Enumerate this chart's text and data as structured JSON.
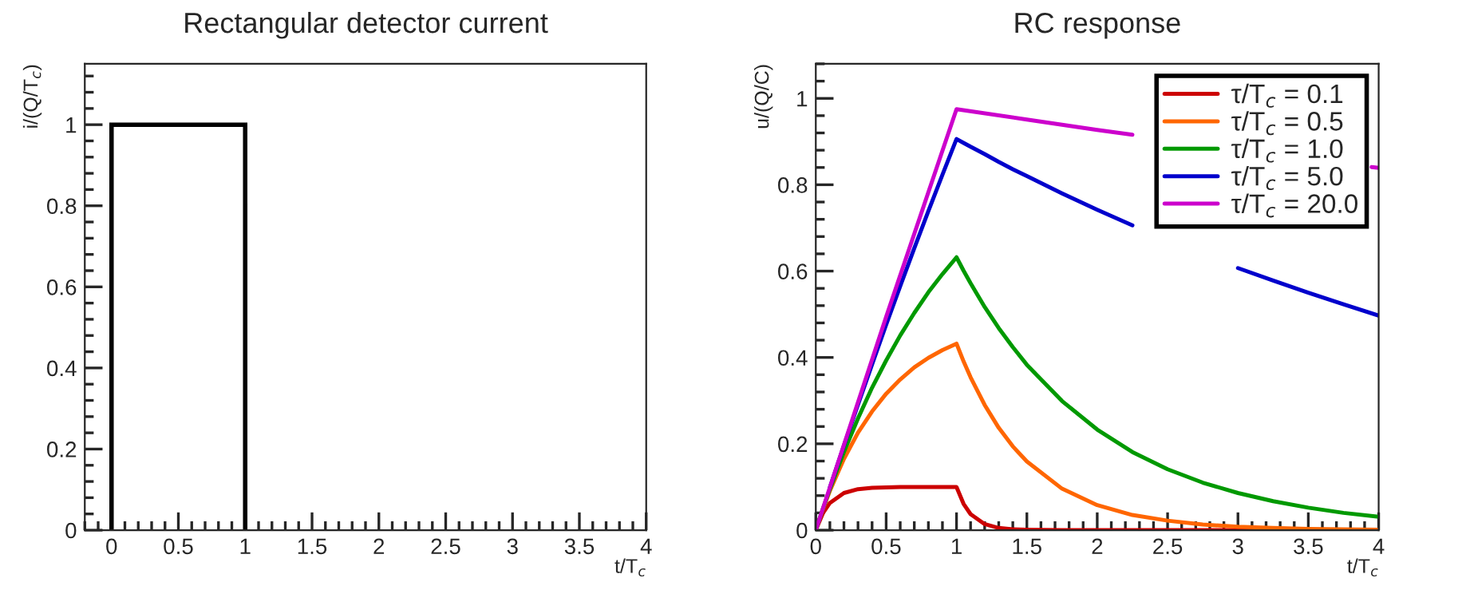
{
  "chart_data": [
    {
      "type": "histogram",
      "title": "Rectangular detector current",
      "xlabel": "t/T$_{c}$",
      "ylabel": "i/(Q/T$_{c}$)",
      "bins": [
        0,
        1
      ],
      "values": [
        1
      ],
      "color": "#000000",
      "xlim": [
        -0.2,
        4
      ],
      "ylim": [
        0,
        1.15
      ],
      "xticks": [
        0,
        0.5,
        1,
        1.5,
        2,
        2.5,
        3,
        3.5,
        4
      ],
      "yticks": [
        0,
        0.2,
        0.4,
        0.6,
        0.8,
        1
      ],
      "grid": false,
      "legend": false
    },
    {
      "type": "line",
      "title": "RC response",
      "xlabel": "t/T$_{c}$",
      "ylabel": "u/(Q/C)",
      "x": [
        0,
        0.05,
        0.1,
        0.2,
        0.3,
        0.4,
        0.5,
        0.6,
        0.7,
        0.8,
        0.9,
        1,
        1.05,
        1.1,
        1.2,
        1.3,
        1.4,
        1.5,
        1.75,
        2,
        2.25,
        2.5,
        2.75,
        3,
        3.25,
        3.5,
        3.75,
        4
      ],
      "series": [
        {
          "name": "τ/T$_{c}$ = 0.1",
          "color": "#cc0000",
          "values": [
            0,
            0.039,
            0.063,
            0.086,
            0.095,
            0.098,
            0.099,
            0.1,
            0.1,
            0.1,
            0.1,
            0.1,
            0.061,
            0.037,
            0.014,
            0.005,
            0.002,
            0.001,
            0,
            0,
            0,
            0,
            0,
            0,
            0,
            0,
            0,
            0
          ]
        },
        {
          "name": "τ/T$_{c}$ = 0.5",
          "color": "#ff6600",
          "values": [
            0,
            0.048,
            0.091,
            0.165,
            0.226,
            0.275,
            0.316,
            0.349,
            0.377,
            0.399,
            0.417,
            0.432,
            0.391,
            0.354,
            0.29,
            0.237,
            0.194,
            0.159,
            0.096,
            0.058,
            0.035,
            0.022,
            0.013,
            0.008,
            0.005,
            0.003,
            0.002,
            0.001
          ]
        },
        {
          "name": "τ/T$_{c}$ = 1.0",
          "color": "#009900",
          "values": [
            0,
            0.049,
            0.095,
            0.181,
            0.259,
            0.33,
            0.393,
            0.451,
            0.503,
            0.551,
            0.593,
            0.632,
            0.601,
            0.572,
            0.517,
            0.468,
            0.424,
            0.383,
            0.299,
            0.233,
            0.181,
            0.141,
            0.11,
            0.086,
            0.067,
            0.052,
            0.04,
            0.031
          ]
        },
        {
          "name": "τ/T$_{c}$ = 5.0",
          "color": "#0000cc",
          "values": [
            null,
            null,
            0.099,
            0.196,
            0.291,
            0.384,
            0.476,
            0.565,
            0.653,
            0.739,
            0.823,
            0.906,
            0.897,
            0.888,
            0.871,
            0.853,
            0.836,
            0.82,
            0.78,
            0.742,
            0.706,
            null,
            null,
            0.607,
            0.578,
            0.55,
            0.523,
            0.497
          ]
        },
        {
          "name": "τ/T$_{c}$ = 20.0",
          "color": "#cc00cc",
          "x": [
            0,
            0.5,
            1,
            1.5,
            2,
            2.25,
            2.5,
            3.95,
            4
          ],
          "values": [
            0,
            0.494,
            0.975,
            0.951,
            0.927,
            0.916,
            null,
            0.841,
            0.839
          ]
        }
      ],
      "xlim": [
        0,
        4
      ],
      "ylim": [
        0,
        1.08
      ],
      "xticks": [
        0,
        0.5,
        1,
        1.5,
        2,
        2.5,
        3,
        3.5,
        4
      ],
      "yticks": [
        0,
        0.2,
        0.4,
        0.6,
        0.8,
        1
      ],
      "grid": false,
      "legend": "top right",
      "marker": "none",
      "line_style": "solid"
    }
  ]
}
